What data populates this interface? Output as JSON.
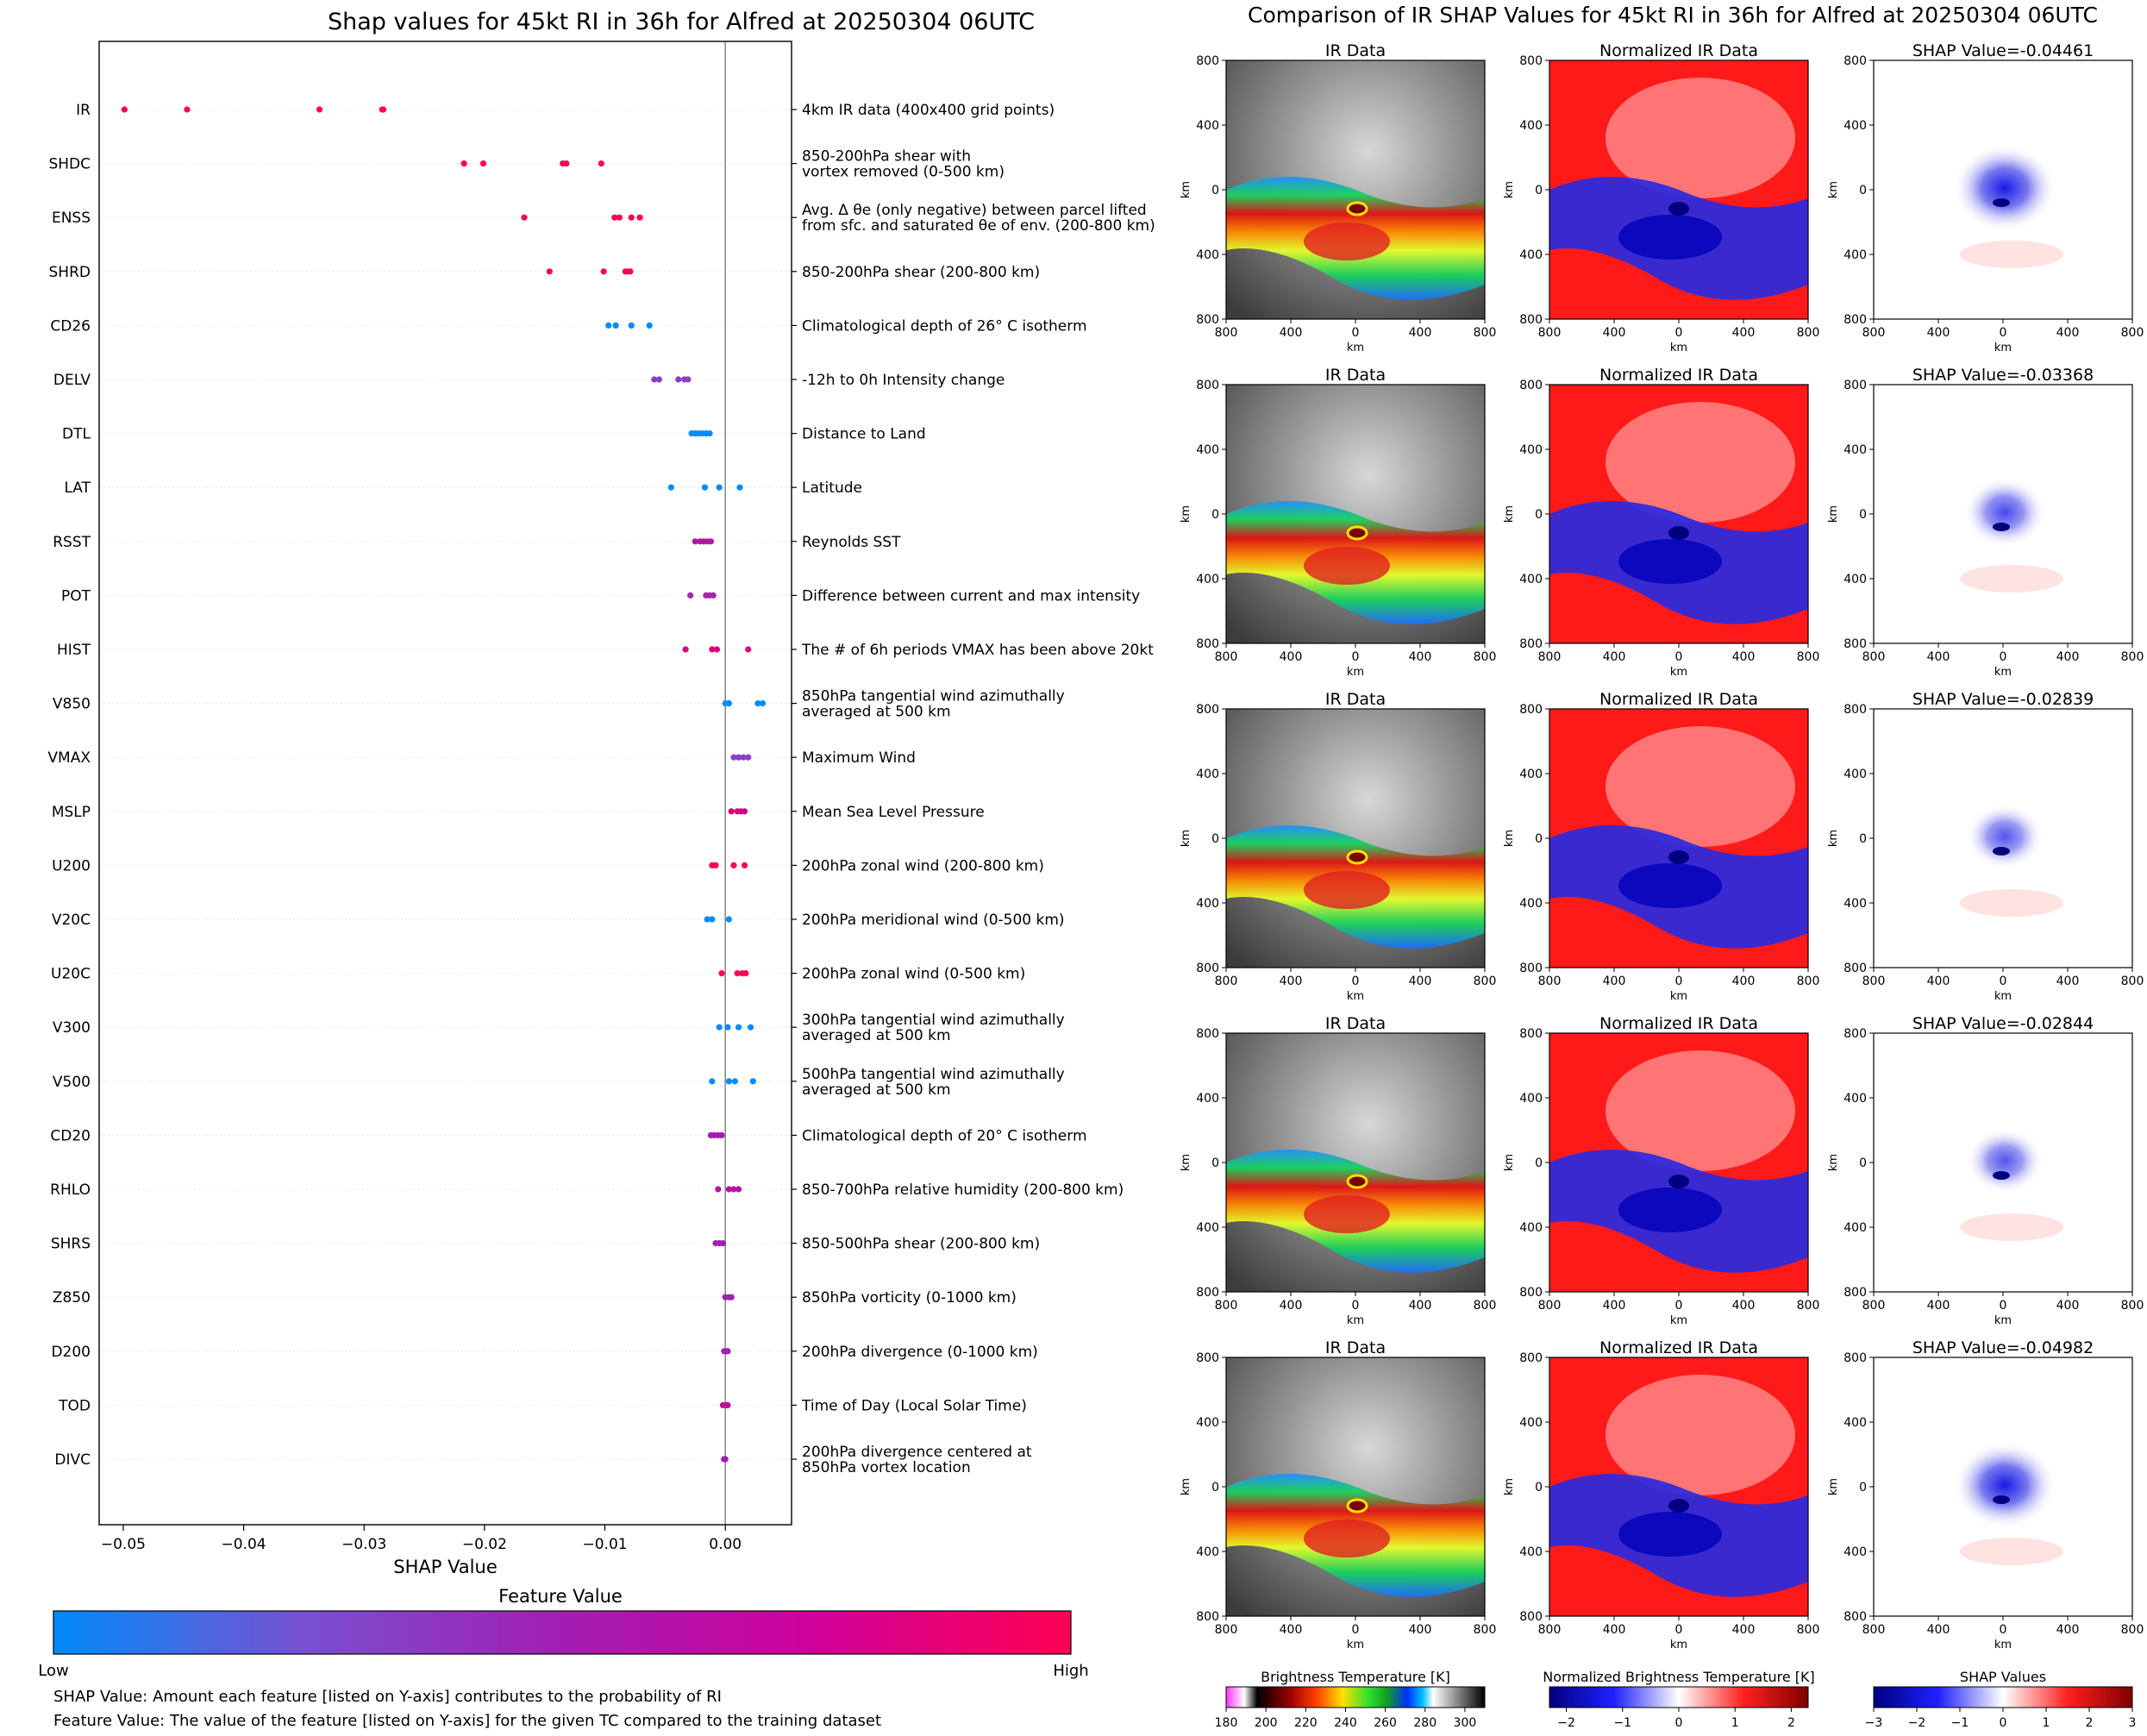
{
  "left_title": "Shap values for 45kt RI in 36h for Alfred at 20250304 06UTC",
  "right_title": "Comparison of IR SHAP Values for 45kt RI in 36h for Alfred at 20250304 06UTC",
  "colorbar": {
    "title": "Feature Value",
    "low": "Low",
    "high": "High",
    "colors": [
      "#008bfa",
      "#7a4fd0",
      "#a21eb3",
      "#d0009a",
      "#ff0052"
    ]
  },
  "footnotes": [
    "SHAP Value: Amount each feature [listed on Y-axis] contributes to the probability of RI",
    "Feature Value: The value of the feature [listed on Y-axis] for the given TC compared to the training dataset"
  ],
  "chart_data": [
    {
      "type": "scatter",
      "title": "Shap values for 45kt RI in 36h for Alfred at 20250304 06UTC",
      "xlabel": "SHAP Value",
      "ylabel": "",
      "xlim": [
        -0.052,
        0.0055
      ],
      "xticks": [
        "−0.05",
        "−0.04",
        "−0.03",
        "−0.02",
        "−0.01",
        "0.00"
      ],
      "xtick_values": [
        -0.05,
        -0.04,
        -0.03,
        -0.02,
        -0.01,
        0.0
      ],
      "grid": false,
      "features": [
        {
          "name": "IR",
          "description": [
            "4km IR data (400x400 grid points)"
          ],
          "color": "#ff0052",
          "values": [
            -0.0499,
            -0.0447,
            -0.0337,
            -0.0285,
            -0.0284
          ]
        },
        {
          "name": "SHDC",
          "description": [
            "850-200hPa shear with",
            "vortex removed (0-500 km)"
          ],
          "color": "#ff0052",
          "values": [
            -0.0217,
            -0.0201,
            -0.0135,
            -0.0132,
            -0.0103
          ]
        },
        {
          "name": "ENSS",
          "description": [
            "Avg. Δ θe (only negative) between parcel lifted",
            "from sfc. and saturated θe of env. (200-800 km)"
          ],
          "color": "#ff0052",
          "values": [
            -0.0167,
            -0.0092,
            -0.0088,
            -0.0078,
            -0.0071
          ]
        },
        {
          "name": "SHRD",
          "description": [
            "850-200hPa shear (200-800 km)"
          ],
          "color": "#ff0052",
          "values": [
            -0.0146,
            -0.0101,
            -0.0083,
            -0.0081,
            -0.0079
          ]
        },
        {
          "name": "CD26",
          "description": [
            "Climatological depth of 26° C isotherm"
          ],
          "color": "#008bfa",
          "values": [
            -0.0097,
            -0.0091,
            -0.0078,
            -0.0063
          ]
        },
        {
          "name": "DELV",
          "description": [
            "-12h to 0h Intensity change"
          ],
          "color": "#8a3fc8",
          "values": [
            -0.0059,
            -0.0055,
            -0.0039,
            -0.0034,
            -0.0031
          ]
        },
        {
          "name": "DTL",
          "description": [
            "Distance to Land"
          ],
          "color": "#008bfa",
          "values": [
            -0.0028,
            -0.0025,
            -0.0022,
            -0.0019,
            -0.0016,
            -0.0013
          ]
        },
        {
          "name": "LAT",
          "description": [
            "Latitude"
          ],
          "color": "#008bfa",
          "values": [
            -0.0045,
            -0.0017,
            -0.0005,
            0.0012
          ]
        },
        {
          "name": "RSST",
          "description": [
            "Reynolds SST"
          ],
          "color": "#b0179f",
          "values": [
            -0.0025,
            -0.0021,
            -0.0018,
            -0.0015,
            -0.0012
          ]
        },
        {
          "name": "POT",
          "description": [
            "Difference between current and max intensity"
          ],
          "color": "#a724b0",
          "values": [
            -0.0029,
            -0.0016,
            -0.0013,
            -0.001
          ]
        },
        {
          "name": "HIST",
          "description": [
            "The # of 6h periods VMAX has been above 20kt"
          ],
          "color": "#d8007e",
          "values": [
            -0.0033,
            -0.0011,
            -0.0007,
            0.0019
          ]
        },
        {
          "name": "V850",
          "description": [
            "850hPa tangential wind azimuthally",
            "averaged at 500 km"
          ],
          "color": "#008bfa",
          "values": [
            0.0,
            0.0003,
            0.0027,
            0.0031
          ]
        },
        {
          "name": "VMAX",
          "description": [
            "Maximum Wind"
          ],
          "color": "#8a3fc8",
          "values": [
            0.0007,
            0.0011,
            0.0015,
            0.0019
          ]
        },
        {
          "name": "MSLP",
          "description": [
            "Mean Sea Level Pressure"
          ],
          "color": "#d8007e",
          "values": [
            0.0005,
            0.001,
            0.0013,
            0.0016
          ]
        },
        {
          "name": "U200",
          "description": [
            "200hPa zonal wind (200-800 km)"
          ],
          "color": "#ff0052",
          "values": [
            -0.0011,
            -0.0008,
            0.0007,
            0.0016
          ]
        },
        {
          "name": "V20C",
          "description": [
            "200hPa meridional wind (0-500 km)"
          ],
          "color": "#008bfa",
          "values": [
            -0.0015,
            -0.0011,
            0.0003
          ]
        },
        {
          "name": "U20C",
          "description": [
            "200hPa zonal wind (0-500 km)"
          ],
          "color": "#ff0052",
          "values": [
            -0.0003,
            0.001,
            0.0014,
            0.0017
          ]
        },
        {
          "name": "V300",
          "description": [
            "300hPa tangential wind azimuthally",
            "averaged at 500 km"
          ],
          "color": "#008bfa",
          "values": [
            -0.0005,
            0.0002,
            0.0011,
            0.0021
          ]
        },
        {
          "name": "V500",
          "description": [
            "500hPa tangential wind azimuthally",
            "averaged at 500 km"
          ],
          "color": "#008bfa",
          "values": [
            -0.0011,
            0.0003,
            0.0008,
            0.0023
          ]
        },
        {
          "name": "CD20",
          "description": [
            "Climatological depth of 20° C isotherm"
          ],
          "color": "#a21eb3",
          "values": [
            -0.0012,
            -0.0009,
            -0.0006,
            -0.0003
          ]
        },
        {
          "name": "RHLO",
          "description": [
            "850-700hPa relative humidity (200-800 km)"
          ],
          "color": "#b0179f",
          "values": [
            -0.0006,
            0.0003,
            0.0007,
            0.0011
          ]
        },
        {
          "name": "SHRS",
          "description": [
            "850-500hPa shear (200-800 km)"
          ],
          "color": "#a21eb3",
          "values": [
            -0.0008,
            -0.0005,
            -0.0002
          ]
        },
        {
          "name": "Z850",
          "description": [
            "850hPa vorticity (0-1000 km)"
          ],
          "color": "#a21eb3",
          "values": [
            0.0,
            0.0003,
            0.0005
          ]
        },
        {
          "name": "D200",
          "description": [
            "200hPa divergence (0-1000 km)"
          ],
          "color": "#a21eb3",
          "values": [
            -0.0001,
            0.0001,
            0.0002
          ]
        },
        {
          "name": "TOD",
          "description": [
            "Time of Day (Local Solar Time)"
          ],
          "color": "#c0109a",
          "values": [
            -0.0002,
            0.0001,
            0.0002
          ]
        },
        {
          "name": "DIVC",
          "description": [
            "200hPa divergence centered at",
            "850hPa vortex location"
          ],
          "color": "#a21eb3",
          "values": [
            -0.0001,
            0.0
          ]
        }
      ]
    },
    {
      "type": "heatmap",
      "title": "Comparison of IR SHAP Values for 45kt RI in 36h for Alfred at 20250304 06UTC",
      "columns": [
        "IR Data",
        "Normalized IR Data",
        "SHAP"
      ],
      "shap_title_prefix": "SHAP Value=",
      "shap_values": [
        "-0.04461",
        "-0.03368",
        "-0.02839",
        "-0.02844",
        "-0.04982"
      ],
      "axis_ticks": [
        "800",
        "400",
        "0",
        "400",
        "800"
      ],
      "axis_label": "km",
      "colorbars": [
        {
          "label": "Brightness Temperature [K]",
          "ticks": [
            "180",
            "200",
            "220",
            "240",
            "260",
            "280",
            "300"
          ],
          "range": [
            180,
            310
          ]
        },
        {
          "label": "Normalized Brightness Temperature [K]",
          "ticks": [
            "−2",
            "−1",
            "0",
            "1",
            "2"
          ],
          "range": [
            -2.3,
            2.3
          ]
        },
        {
          "label": "SHAP Values",
          "ticks": [
            "−3",
            "−2",
            "−1",
            "0",
            "1",
            "2",
            "3"
          ],
          "range": [
            -3,
            3
          ],
          "offset": "1e−5"
        }
      ]
    }
  ]
}
